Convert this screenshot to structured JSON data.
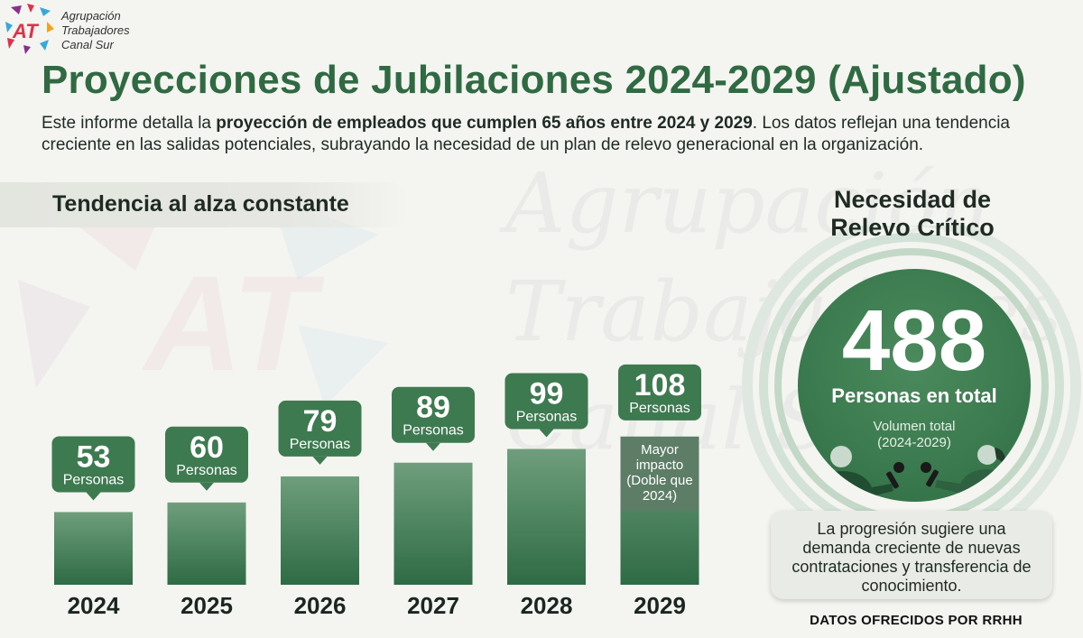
{
  "org": {
    "logo_text": "AT",
    "name_lines": [
      "Agrupación",
      "Trabajadores",
      "Canal Sur"
    ]
  },
  "title": "Proyecciones de Jubilaciones 2024-2029 (Ajustado)",
  "intro": {
    "part1": "Este informe detalla la ",
    "bold": "proyección de empleados que cumplen 65 años entre 2024 y 2029",
    "part2": ". Los datos reflejan una tendencia creciente en las salidas potenciales, subrayando la necesidad de un plan de relevo generacional en la organización."
  },
  "chart_section_title": "Tendencia al alza constante",
  "chart_data": {
    "type": "bar",
    "categories": [
      "2024",
      "2025",
      "2026",
      "2027",
      "2028",
      "2029"
    ],
    "values": [
      53,
      60,
      79,
      89,
      99,
      108
    ],
    "value_unit_label": "Personas",
    "annotation": {
      "category": "2029",
      "lines": [
        "Mayor",
        "impacto",
        "(Doble que",
        "2024)"
      ]
    },
    "ylim": [
      0,
      110
    ]
  },
  "summary": {
    "title_lines": [
      "Necesidad de",
      "Relevo Crítico"
    ],
    "total": "488",
    "total_label": "Personas en total",
    "volume_lines": [
      "Volumen total",
      "(2024-2029)"
    ],
    "callout_lines": [
      "La progresión sugiere una",
      "demanda creciente de nuevas",
      "contrataciones y transferencia de",
      "conocimiento."
    ]
  },
  "credit": "DATOS OFRECIDOS POR RRHH",
  "watermark_lines": [
    "Agrupación",
    "Trabajadores",
    "Canal Sur"
  ],
  "colors": {
    "title_green": "#2f6a43",
    "bar_dark": "#2e6b44",
    "bar_light": "#6f9e7d",
    "label_green": "#3d7a50",
    "accent_logo_red": "#e0314a",
    "accent_logo_purple": "#8b2f8f",
    "accent_logo_blue": "#3aa7d9"
  }
}
